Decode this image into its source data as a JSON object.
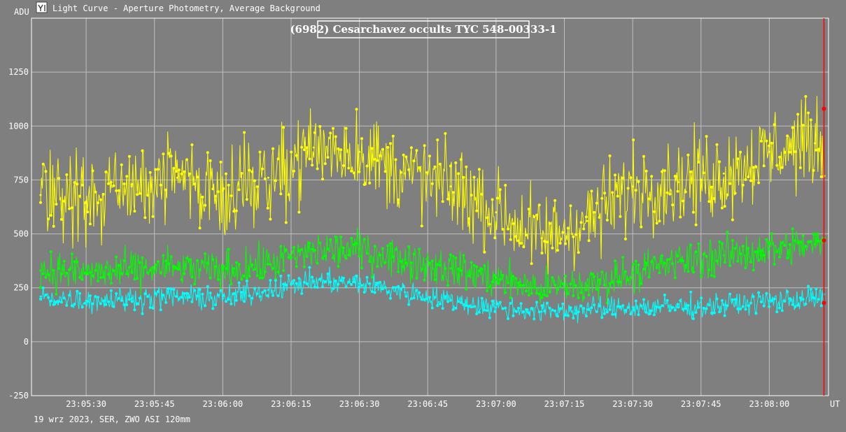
{
  "window": {
    "title": "Light Curve - Aperture Photometry, Average Background",
    "icon": "light-curve-app-icon"
  },
  "footer": {
    "info": "19 wrz 2023, SER, ZWO ASI 120mm"
  },
  "chart_data": {
    "type": "line",
    "title": "(6982) Cesarchavez occults TYC 548-00333-1",
    "xlabel": "UT",
    "ylabel": "ADU",
    "ylim": [
      -250,
      1500
    ],
    "yticks": [
      -250,
      0,
      250,
      500,
      750,
      1000,
      1250
    ],
    "x_tick_labels": [
      "23:05:30",
      "23:05:45",
      "23:06:00",
      "23:06:15",
      "23:06:30",
      "23:06:45",
      "23:07:00",
      "23:07:15",
      "23:07:30",
      "23:07:45",
      "23:08:00"
    ],
    "xlim": [
      "23:05:18",
      "23:08:13"
    ],
    "grid": true,
    "colors": {
      "background": "#7f7f7f",
      "grid": "#c0c0c0",
      "cursor": "#ff0000"
    },
    "series": [
      {
        "color": "#ffff00",
        "x": [
          "23:05:20",
          "23:05:30",
          "23:05:40",
          "23:05:50",
          "23:06:00",
          "23:06:10",
          "23:06:20",
          "23:06:30",
          "23:06:40",
          "23:06:50",
          "23:07:00",
          "23:07:10",
          "23:07:20",
          "23:07:30",
          "23:07:40",
          "23:07:50",
          "23:08:00",
          "23:08:10"
        ],
        "values": [
          680,
          650,
          720,
          760,
          700,
          760,
          900,
          880,
          780,
          720,
          600,
          480,
          560,
          720,
          740,
          780,
          880,
          920
        ]
      },
      {
        "color": "#00ff00",
        "x": [
          "23:05:20",
          "23:05:30",
          "23:05:40",
          "23:05:50",
          "23:06:00",
          "23:06:10",
          "23:06:20",
          "23:06:30",
          "23:06:40",
          "23:06:50",
          "23:07:00",
          "23:07:10",
          "23:07:20",
          "23:07:30",
          "23:07:40",
          "23:07:50",
          "23:08:00",
          "23:08:10"
        ],
        "values": [
          330,
          320,
          330,
          340,
          330,
          360,
          420,
          430,
          380,
          340,
          290,
          250,
          260,
          320,
          370,
          400,
          430,
          450
        ]
      },
      {
        "color": "#00ffff",
        "x": [
          "23:05:20",
          "23:05:30",
          "23:05:40",
          "23:05:50",
          "23:06:00",
          "23:06:10",
          "23:06:20",
          "23:06:30",
          "23:06:40",
          "23:06:50",
          "23:07:00",
          "23:07:10",
          "23:07:20",
          "23:07:30",
          "23:07:40",
          "23:07:50",
          "23:08:00",
          "23:08:10"
        ],
        "values": [
          210,
          190,
          200,
          210,
          200,
          240,
          280,
          270,
          230,
          190,
          160,
          140,
          150,
          160,
          160,
          170,
          190,
          200
        ]
      }
    ],
    "cursor_x": "23:08:12",
    "cursor_markers": [
      1080,
      470,
      180
    ]
  }
}
